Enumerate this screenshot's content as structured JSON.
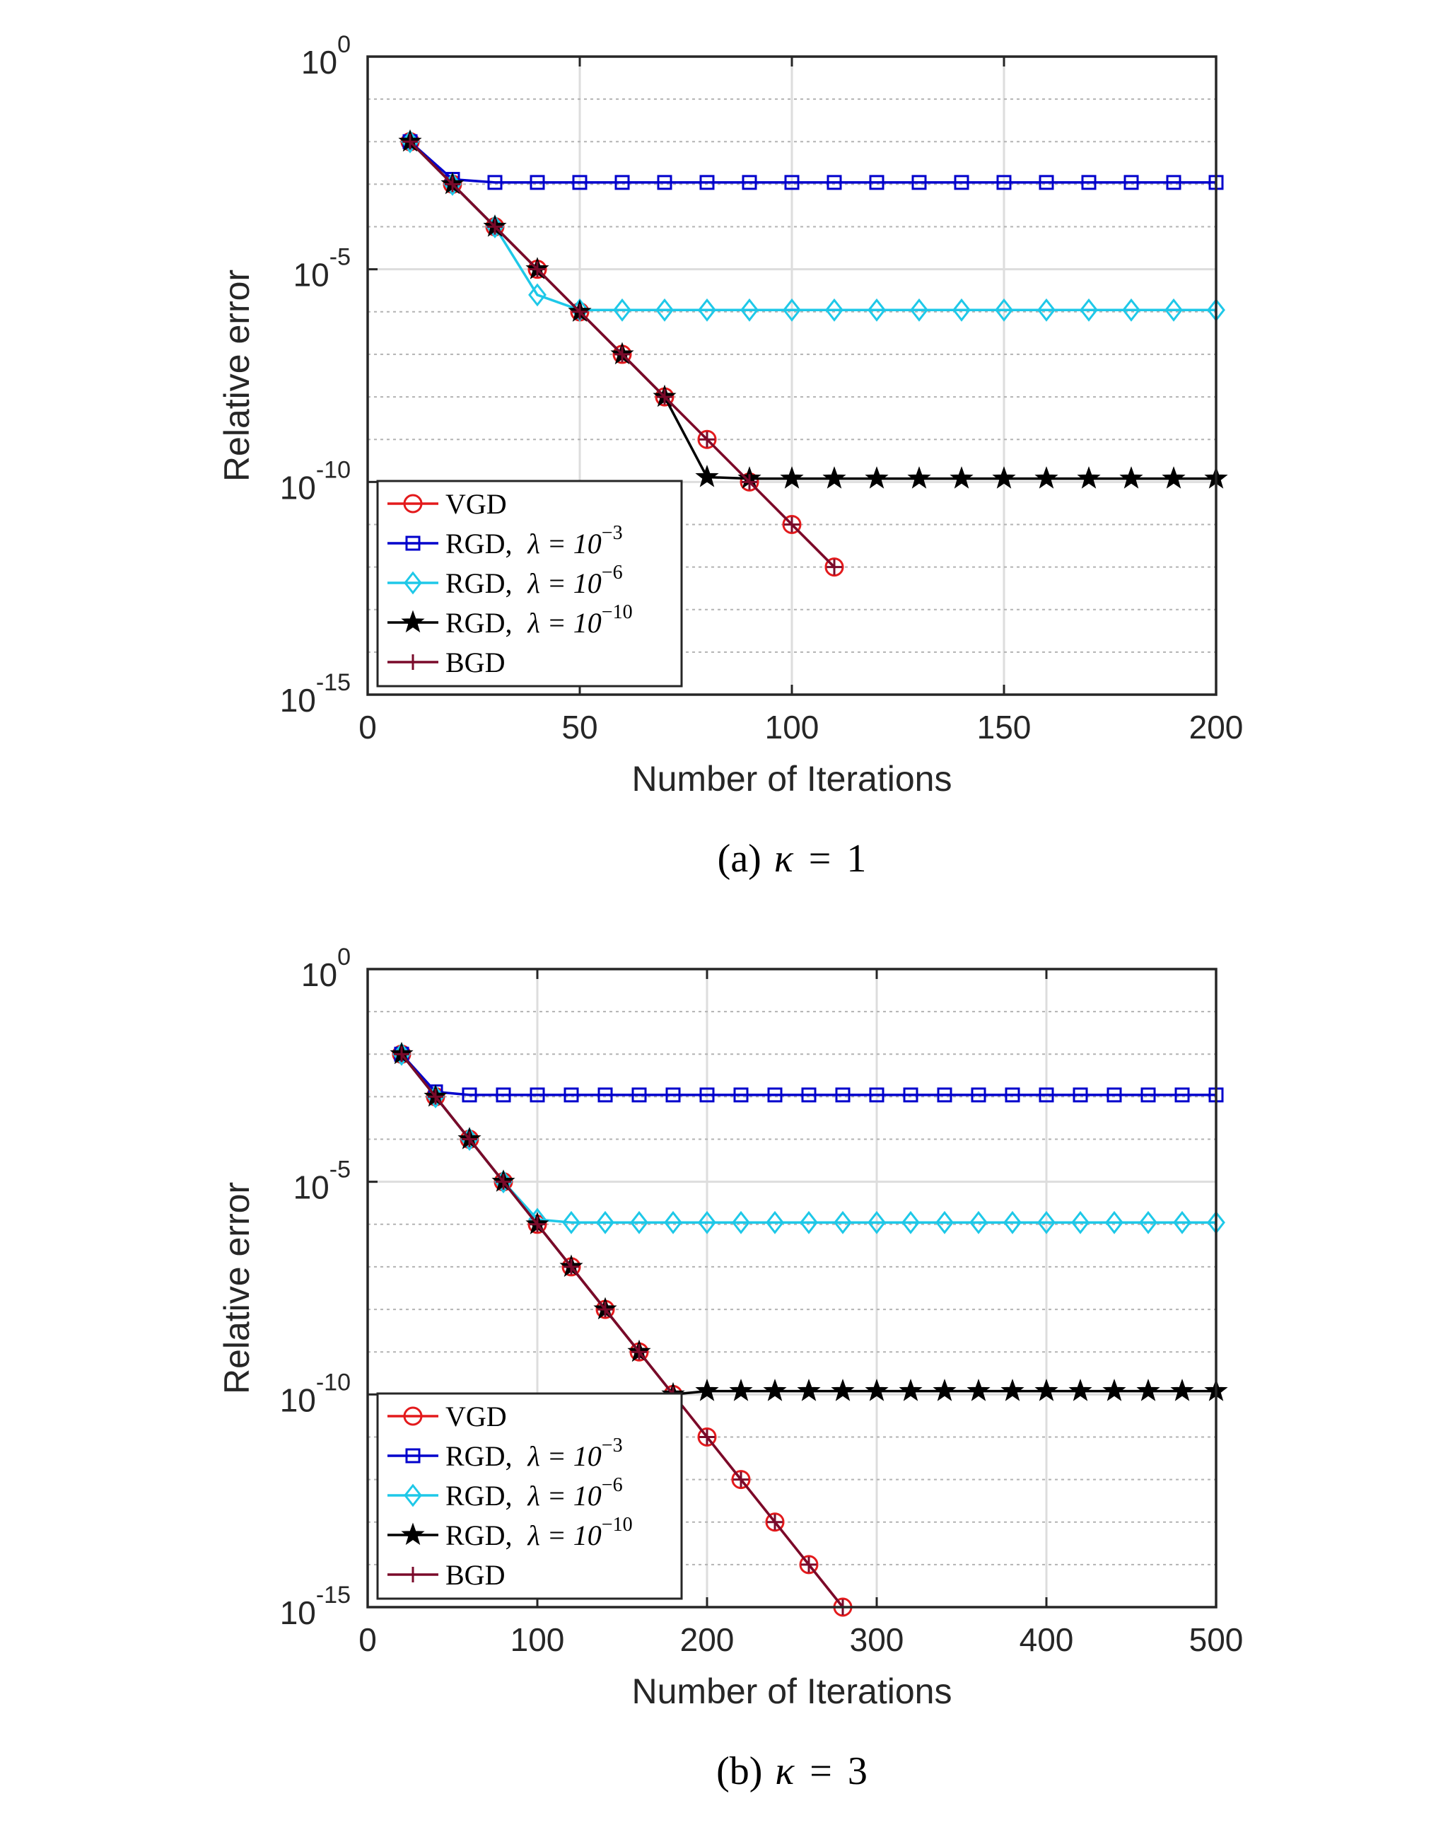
{
  "chart_data": [
    {
      "type": "line",
      "caption": "(a) κ = 1",
      "caption_parts": {
        "prefix": "(a)",
        "symbol": "κ",
        "equals": "=",
        "value": "1"
      },
      "xlabel": "Number of Iterations",
      "ylabel": "Relative error",
      "yscale": "log",
      "xlim": [
        0,
        200
      ],
      "ylim": [
        1e-15,
        1
      ],
      "xticks": [
        "0",
        "50",
        "100",
        "150",
        "200"
      ],
      "yticks": [
        {
          "base": "10",
          "exp": "0"
        },
        {
          "base": "10",
          "exp": "-5"
        },
        {
          "base": "10",
          "exp": "-10"
        },
        {
          "base": "10",
          "exp": "-15"
        }
      ],
      "grid": true,
      "legend_position": "bottom-left",
      "series": [
        {
          "name": "VGD",
          "legend": {
            "text": "VGD"
          },
          "color": "#e31a1c",
          "marker": "circle",
          "x": [
            10,
            20,
            30,
            40,
            50,
            60,
            70,
            80,
            90,
            100,
            110
          ],
          "y": [
            0.01,
            0.001,
            0.0001,
            1e-05,
            1e-06,
            1e-07,
            1e-08,
            1e-09,
            1e-10,
            1e-11,
            1e-12
          ]
        },
        {
          "name": "RGD, λ = 10^-3",
          "legend": {
            "text": "RGD,",
            "lambda": "λ = 10",
            "exp": "−3"
          },
          "color": "#0000cc",
          "marker": "square",
          "x": [
            10,
            20,
            30,
            40,
            50,
            60,
            70,
            80,
            90,
            100,
            110,
            120,
            130,
            140,
            150,
            160,
            170,
            180,
            190,
            200
          ],
          "y": [
            0.01,
            0.0013,
            0.0011,
            0.0011,
            0.0011,
            0.0011,
            0.0011,
            0.0011,
            0.0011,
            0.0011,
            0.0011,
            0.0011,
            0.0011,
            0.0011,
            0.0011,
            0.0011,
            0.0011,
            0.0011,
            0.0011,
            0.0011
          ]
        },
        {
          "name": "RGD, λ = 10^-6",
          "legend": {
            "text": "RGD,",
            "lambda": "λ = 10",
            "exp": "−6"
          },
          "color": "#1ec8e8",
          "marker": "diamond",
          "x": [
            10,
            20,
            30,
            40,
            50,
            60,
            70,
            80,
            90,
            100,
            110,
            120,
            130,
            140,
            150,
            160,
            170,
            180,
            190,
            200
          ],
          "y": [
            0.01,
            0.001,
            0.0001,
            2.5e-06,
            1.1e-06,
            1.1e-06,
            1.1e-06,
            1.1e-06,
            1.1e-06,
            1.1e-06,
            1.1e-06,
            1.1e-06,
            1.1e-06,
            1.1e-06,
            1.1e-06,
            1.1e-06,
            1.1e-06,
            1.1e-06,
            1.1e-06,
            1.1e-06
          ]
        },
        {
          "name": "RGD, λ = 10^-10",
          "legend": {
            "text": "RGD,",
            "lambda": "λ = 10",
            "exp": "−10"
          },
          "color": "#000000",
          "marker": "star",
          "x": [
            10,
            20,
            30,
            40,
            50,
            60,
            70,
            80,
            90,
            100,
            110,
            120,
            130,
            140,
            150,
            160,
            170,
            180,
            190,
            200
          ],
          "y": [
            0.01,
            0.001,
            0.0001,
            1e-05,
            1e-06,
            1e-07,
            1e-08,
            1.3e-10,
            1.2e-10,
            1.2e-10,
            1.2e-10,
            1.2e-10,
            1.2e-10,
            1.2e-10,
            1.2e-10,
            1.2e-10,
            1.2e-10,
            1.2e-10,
            1.2e-10,
            1.2e-10
          ]
        },
        {
          "name": "BGD",
          "legend": {
            "text": "BGD"
          },
          "color": "#7a0a2a",
          "marker": "plus",
          "x": [
            10,
            20,
            30,
            40,
            50,
            60,
            70,
            80,
            90,
            100,
            110
          ],
          "y": [
            0.01,
            0.001,
            0.0001,
            1e-05,
            1e-06,
            1e-07,
            1e-08,
            1e-09,
            1e-10,
            1e-11,
            1e-12
          ]
        }
      ]
    },
    {
      "type": "line",
      "caption": "(b) κ = 3",
      "caption_parts": {
        "prefix": "(b)",
        "symbol": "κ",
        "equals": "=",
        "value": "3"
      },
      "xlabel": "Number of Iterations",
      "ylabel": "Relative error",
      "yscale": "log",
      "xlim": [
        0,
        500
      ],
      "ylim": [
        1e-15,
        1
      ],
      "xticks": [
        "0",
        "100",
        "200",
        "300",
        "400",
        "500"
      ],
      "yticks": [
        {
          "base": "10",
          "exp": "0"
        },
        {
          "base": "10",
          "exp": "-5"
        },
        {
          "base": "10",
          "exp": "-10"
        },
        {
          "base": "10",
          "exp": "-15"
        }
      ],
      "grid": true,
      "legend_position": "bottom-left",
      "series": [
        {
          "name": "VGD",
          "legend": {
            "text": "VGD"
          },
          "color": "#e31a1c",
          "marker": "circle",
          "x": [
            20,
            40,
            60,
            80,
            100,
            120,
            140,
            160,
            180,
            200,
            220,
            240,
            260,
            280
          ],
          "y": [
            0.01,
            0.001,
            0.0001,
            1e-05,
            1e-06,
            1e-07,
            1e-08,
            1e-09,
            1e-10,
            1e-11,
            1e-12,
            1e-13,
            1e-14,
            1e-15
          ]
        },
        {
          "name": "RGD, λ = 10^-3",
          "legend": {
            "text": "RGD,",
            "lambda": "λ = 10",
            "exp": "−3"
          },
          "color": "#0000cc",
          "marker": "square",
          "x": [
            20,
            40,
            60,
            80,
            100,
            120,
            140,
            160,
            180,
            200,
            220,
            240,
            260,
            280,
            300,
            320,
            340,
            360,
            380,
            400,
            420,
            440,
            460,
            480,
            500
          ],
          "y": [
            0.01,
            0.0013,
            0.0011,
            0.0011,
            0.0011,
            0.0011,
            0.0011,
            0.0011,
            0.0011,
            0.0011,
            0.0011,
            0.0011,
            0.0011,
            0.0011,
            0.0011,
            0.0011,
            0.0011,
            0.0011,
            0.0011,
            0.0011,
            0.0011,
            0.0011,
            0.0011,
            0.0011,
            0.0011
          ]
        },
        {
          "name": "RGD, λ = 10^-6",
          "legend": {
            "text": "RGD,",
            "lambda": "λ = 10",
            "exp": "−6"
          },
          "color": "#1ec8e8",
          "marker": "diamond",
          "x": [
            20,
            40,
            60,
            80,
            100,
            120,
            140,
            160,
            180,
            200,
            220,
            240,
            260,
            280,
            300,
            320,
            340,
            360,
            380,
            400,
            420,
            440,
            460,
            480,
            500
          ],
          "y": [
            0.01,
            0.001,
            0.0001,
            1e-05,
            1.3e-06,
            1.1e-06,
            1.1e-06,
            1.1e-06,
            1.1e-06,
            1.1e-06,
            1.1e-06,
            1.1e-06,
            1.1e-06,
            1.1e-06,
            1.1e-06,
            1.1e-06,
            1.1e-06,
            1.1e-06,
            1.1e-06,
            1.1e-06,
            1.1e-06,
            1.1e-06,
            1.1e-06,
            1.1e-06,
            1.1e-06
          ]
        },
        {
          "name": "RGD, λ = 10^-10",
          "legend": {
            "text": "RGD,",
            "lambda": "λ = 10",
            "exp": "−10"
          },
          "color": "#000000",
          "marker": "star",
          "x": [
            20,
            40,
            60,
            80,
            100,
            120,
            140,
            160,
            180,
            200,
            220,
            240,
            260,
            280,
            300,
            320,
            340,
            360,
            380,
            400,
            420,
            440,
            460,
            480,
            500
          ],
          "y": [
            0.01,
            0.001,
            0.0001,
            1e-05,
            1e-06,
            1e-07,
            1e-08,
            1e-09,
            1e-10,
            1.2e-10,
            1.2e-10,
            1.2e-10,
            1.2e-10,
            1.2e-10,
            1.2e-10,
            1.2e-10,
            1.2e-10,
            1.2e-10,
            1.2e-10,
            1.2e-10,
            1.2e-10,
            1.2e-10,
            1.2e-10,
            1.2e-10,
            1.2e-10
          ]
        },
        {
          "name": "BGD",
          "legend": {
            "text": "BGD"
          },
          "color": "#7a0a2a",
          "marker": "plus",
          "x": [
            20,
            40,
            60,
            80,
            100,
            120,
            140,
            160,
            180,
            200,
            220,
            240,
            260,
            280
          ],
          "y": [
            0.01,
            0.001,
            0.0001,
            1e-05,
            1e-06,
            1e-07,
            1e-08,
            1e-09,
            1e-10,
            1e-11,
            1e-12,
            1e-13,
            1e-14,
            1e-15
          ]
        }
      ]
    }
  ]
}
